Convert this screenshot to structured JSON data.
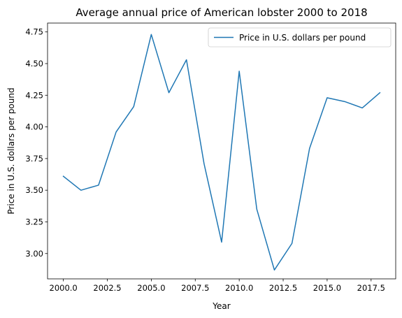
{
  "chart_data": {
    "type": "line",
    "title": "Average annual price of American lobster 2000 to 2018",
    "xlabel": "Year",
    "ylabel": "Price in U.S. dollars per pound",
    "x": [
      2000,
      2001,
      2002,
      2003,
      2004,
      2005,
      2006,
      2007,
      2008,
      2009,
      2010,
      2011,
      2012,
      2013,
      2014,
      2015,
      2016,
      2017,
      2018
    ],
    "series": [
      {
        "name": "Price in U.S. dollars per pound",
        "color": "#1f77b4",
        "values": [
          3.61,
          3.5,
          3.54,
          3.96,
          4.16,
          4.73,
          4.27,
          4.53,
          3.71,
          3.09,
          4.44,
          3.35,
          2.87,
          3.08,
          3.83,
          4.23,
          4.2,
          4.15,
          4.27
        ]
      }
    ],
    "xlim": [
      1999.1,
      2018.9
    ],
    "ylim": [
      2.8,
      4.82
    ],
    "xticks": [
      2000.0,
      2002.5,
      2005.0,
      2007.5,
      2010.0,
      2012.5,
      2015.0,
      2017.5
    ],
    "xtick_labels": [
      "2000.0",
      "2002.5",
      "2005.0",
      "2007.5",
      "2010.0",
      "2012.5",
      "2015.0",
      "2017.5"
    ],
    "yticks": [
      3.0,
      3.25,
      3.5,
      3.75,
      4.0,
      4.25,
      4.5,
      4.75
    ],
    "ytick_labels": [
      "3.00",
      "3.25",
      "3.50",
      "3.75",
      "4.00",
      "4.25",
      "4.50",
      "4.75"
    ],
    "grid": false,
    "legend": "top-right"
  }
}
